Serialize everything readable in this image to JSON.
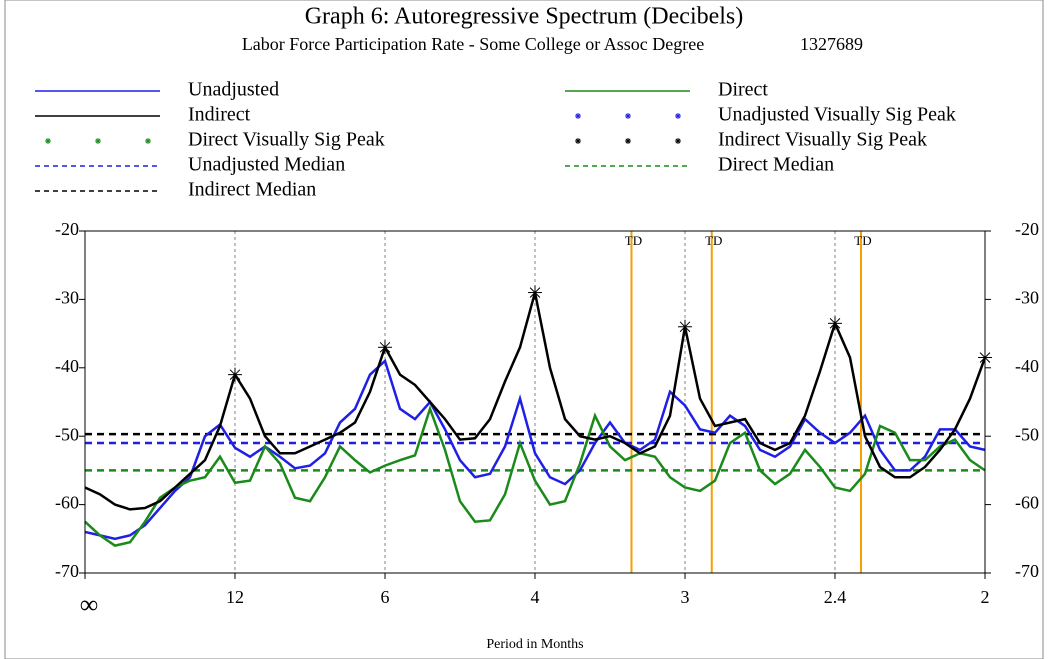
{
  "chart_data": {
    "type": "line",
    "title": "Graph 6: Autoregressive Spectrum (Decibels)",
    "subtitle": "Labor Force Participation Rate - Some College or Assoc Degree",
    "series_id": "1327689",
    "xlabel": "Period in Months",
    "xlim": [
      0,
      0.5
    ],
    "ylim": [
      -70,
      -20
    ],
    "yticks": [
      -20,
      -30,
      -40,
      -50,
      -60,
      -70
    ],
    "xticks": [
      {
        "value": 0,
        "label": "∞"
      },
      {
        "value": 0.08333,
        "label": "12"
      },
      {
        "value": 0.16667,
        "label": "6"
      },
      {
        "value": 0.25,
        "label": "4"
      },
      {
        "value": 0.33333,
        "label": "3"
      },
      {
        "value": 0.41667,
        "label": "2.4"
      },
      {
        "value": 0.5,
        "label": "2"
      }
    ],
    "tick_lines": true,
    "td_lines": {
      "label": "TD",
      "x": [
        0.3036,
        0.3482,
        0.4311
      ],
      "color": "#f5a000"
    },
    "x": [
      0,
      0.00833,
      0.01667,
      0.025,
      0.03333,
      0.04167,
      0.05,
      0.05833,
      0.06667,
      0.075,
      0.08333,
      0.09167,
      0.1,
      0.10833,
      0.11667,
      0.125,
      0.13333,
      0.14167,
      0.15,
      0.15833,
      0.16667,
      0.175,
      0.18333,
      0.19167,
      0.2,
      0.20833,
      0.21667,
      0.225,
      0.23333,
      0.24167,
      0.25,
      0.25833,
      0.26667,
      0.275,
      0.28333,
      0.29167,
      0.3,
      0.30833,
      0.31667,
      0.325,
      0.33333,
      0.34167,
      0.35,
      0.35833,
      0.36667,
      0.375,
      0.38333,
      0.39167,
      0.4,
      0.40833,
      0.41667,
      0.425,
      0.43333,
      0.44167,
      0.45,
      0.45833,
      0.46667,
      0.475,
      0.48333,
      0.49167,
      0.5
    ],
    "series": [
      {
        "name": "Unadjusted",
        "kind": "line",
        "color": "#1f1fe6",
        "values": [
          -64,
          -64.5,
          -65,
          -64.5,
          -63,
          -60.5,
          -58,
          -56,
          -50,
          -48.3,
          -51.7,
          -53,
          -51.5,
          -53,
          -54.7,
          -54.3,
          -52.5,
          -48,
          -46,
          -41,
          -39,
          -46,
          -47.5,
          -45,
          -49,
          -53.5,
          -56,
          -55.5,
          -51.5,
          -44.5,
          -52.5,
          -56,
          -57,
          -55,
          -51,
          -48,
          -51,
          -52,
          -50.5,
          -43.5,
          -45.5,
          -49,
          -49.5,
          -47,
          -48.5,
          -52,
          -53,
          -51.5,
          -47.5,
          -49.5,
          -51,
          -49.5,
          -47,
          -52,
          -55,
          -55,
          -53,
          -49,
          -49,
          -51.5,
          -52
        ]
      },
      {
        "name": "Direct",
        "kind": "line",
        "color": "#1a8a1a",
        "values": [
          -62.5,
          -64.5,
          -66,
          -65.5,
          -62.5,
          -59,
          -57.5,
          -56.5,
          -56,
          -53,
          -56.8,
          -56.5,
          -51.5,
          -54,
          -59,
          -59.5,
          -56,
          -51.5,
          -53.5,
          -55.3,
          -54.3,
          -53.5,
          -52.8,
          -46,
          -52,
          -59.5,
          -62.5,
          -62.3,
          -58.5,
          -51,
          -56.5,
          -60,
          -59.5,
          -54,
          -47,
          -51.5,
          -53.5,
          -52.5,
          -53,
          -56,
          -57.5,
          -58,
          -56.5,
          -51,
          -49.5,
          -55,
          -57,
          -55.5,
          -52,
          -54.5,
          -57.5,
          -58,
          -55.5,
          -48.5,
          -49.5,
          -53.5,
          -53.5,
          -51.5,
          -50.5,
          -53.5,
          -55
        ]
      },
      {
        "name": "Indirect",
        "kind": "line",
        "color": "#000000",
        "values": [
          -57.5,
          -58.5,
          -60,
          -60.7,
          -60.5,
          -59.5,
          -57.5,
          -55.5,
          -53.5,
          -48.5,
          -41,
          -44.5,
          -50,
          -52.5,
          -52.5,
          -51.5,
          -50.5,
          -49.5,
          -48,
          -43.5,
          -37,
          -41,
          -42.5,
          -45,
          -47.5,
          -50.5,
          -50.3,
          -47.5,
          -42,
          -37,
          -29,
          -40,
          -47.5,
          -50,
          -50.5,
          -50,
          -51,
          -52.5,
          -51.5,
          -47,
          -34,
          -44.5,
          -48.5,
          -48,
          -47.5,
          -51,
          -52,
          -51,
          -47,
          -40.5,
          -33.5,
          -38.5,
          -50,
          -54.5,
          -56,
          -56,
          -54.5,
          -52,
          -49,
          -44.5,
          -38.5
        ]
      },
      {
        "name": "Unadjusted Visually Sig Peak",
        "kind": "peak",
        "color": "#1f1fe6",
        "x": [],
        "values": []
      },
      {
        "name": "Direct Visually Sig Peak",
        "kind": "peak",
        "color": "#1a8a1a",
        "x": [],
        "values": []
      },
      {
        "name": "Indirect Visually Sig Peak",
        "kind": "peak",
        "color": "#000000",
        "x": [
          0.08333,
          0.16667,
          0.25,
          0.33333,
          0.41667,
          0.5
        ],
        "values": [
          -41,
          -37,
          -29,
          -34,
          -33.5,
          -38.5
        ]
      },
      {
        "name": "Unadjusted Median",
        "kind": "median",
        "color": "#1f1fe6",
        "value": -51
      },
      {
        "name": "Direct Median",
        "kind": "median",
        "color": "#1a8a1a",
        "value": -55
      },
      {
        "name": "Indirect Median",
        "kind": "median",
        "color": "#000000",
        "value": -49.7
      }
    ]
  }
}
